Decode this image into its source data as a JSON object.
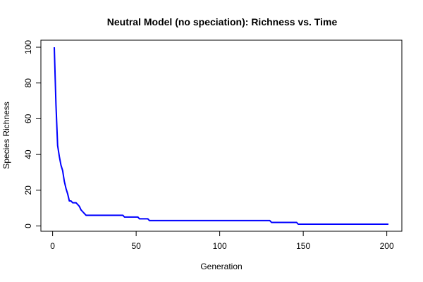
{
  "chart_data": {
    "type": "line",
    "title": "Neutral Model (no speciation): Richness vs. Time",
    "xlabel": "Generation",
    "ylabel": "Species Richness",
    "xlim": [
      1,
      201
    ],
    "ylim": [
      1,
      100
    ],
    "x_ticks": [
      0,
      50,
      100,
      150,
      200
    ],
    "y_ticks": [
      0,
      20,
      40,
      60,
      80,
      100
    ],
    "grid": false,
    "legend": "none",
    "series": [
      {
        "color": "#0000ff",
        "x": [
          1,
          2,
          3,
          4,
          5,
          6,
          7,
          8,
          9,
          10,
          11,
          12,
          13,
          14,
          15,
          16,
          17,
          18,
          19,
          20,
          21,
          22,
          23,
          24,
          25,
          26,
          27,
          28,
          29,
          30,
          31,
          32,
          33,
          34,
          35,
          36,
          37,
          38,
          39,
          40,
          41,
          42,
          43,
          44,
          45,
          46,
          47,
          48,
          49,
          50,
          51,
          52,
          53,
          54,
          55,
          56,
          57,
          58,
          59,
          60,
          70,
          80,
          90,
          100,
          110,
          120,
          129,
          130,
          131,
          132,
          140,
          145,
          146,
          147,
          148,
          160,
          180,
          200,
          201
        ],
        "y": [
          100,
          68,
          45,
          39,
          34,
          31,
          25,
          21,
          18,
          14,
          14,
          13,
          13,
          13,
          12,
          11,
          9,
          8,
          7,
          6,
          6,
          6,
          6,
          6,
          6,
          6,
          6,
          6,
          6,
          6,
          6,
          6,
          6,
          6,
          6,
          6,
          6,
          6,
          6,
          6,
          6,
          6,
          5,
          5,
          5,
          5,
          5,
          5,
          5,
          5,
          5,
          4,
          4,
          4,
          4,
          4,
          4,
          3,
          3,
          3,
          3,
          3,
          3,
          3,
          3,
          3,
          3,
          3,
          2,
          2,
          2,
          2,
          2,
          1,
          1,
          1,
          1,
          1,
          1
        ]
      }
    ]
  }
}
